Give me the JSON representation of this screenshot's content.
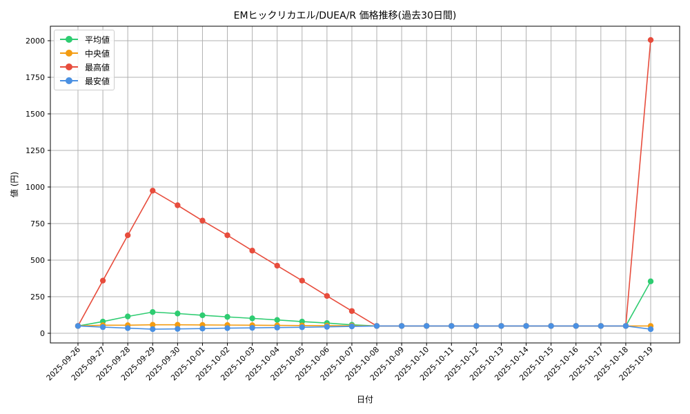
{
  "chart_data": {
    "type": "line",
    "title": "EMヒックリカエル/DUEA/R 価格推移(過去30日間)",
    "xlabel": "日付",
    "ylabel": "値 (円)",
    "ylim": [
      -65,
      2105
    ],
    "yticks": [
      0,
      250,
      500,
      750,
      1000,
      1250,
      1500,
      1750,
      2000
    ],
    "grid": true,
    "legend_position": "upper left",
    "categories": [
      "2025-09-26",
      "2025-09-27",
      "2025-09-28",
      "2025-09-29",
      "2025-09-30",
      "2025-10-01",
      "2025-10-02",
      "2025-10-03",
      "2025-10-04",
      "2025-10-05",
      "2025-10-06",
      "2025-10-07",
      "2025-10-08",
      "2025-10-09",
      "2025-10-10",
      "2025-10-11",
      "2025-10-12",
      "2025-10-13",
      "2025-10-14",
      "2025-10-15",
      "2025-10-16",
      "2025-10-17",
      "2025-10-18",
      "2025-10-19"
    ],
    "series": [
      {
        "name": "平均値",
        "color": "#2ecc71",
        "values": [
          50,
          80,
          115,
          145,
          135,
          123,
          112,
          102,
          91,
          80,
          70,
          58,
          50,
          50,
          50,
          50,
          50,
          50,
          50,
          50,
          50,
          50,
          50,
          355
        ]
      },
      {
        "name": "中央値",
        "color": "#f39c12",
        "values": [
          50,
          55,
          55,
          58,
          58,
          57,
          56,
          55,
          54,
          53,
          52,
          51,
          50,
          50,
          50,
          50,
          50,
          50,
          50,
          50,
          50,
          50,
          50,
          50
        ]
      },
      {
        "name": "最高値",
        "color": "#e74c3c",
        "values": [
          50,
          360,
          670,
          975,
          875,
          770,
          670,
          565,
          462,
          360,
          255,
          152,
          50,
          50,
          50,
          50,
          50,
          50,
          50,
          50,
          50,
          50,
          50,
          2005
        ]
      },
      {
        "name": "最安値",
        "color": "#4a90e2",
        "values": [
          50,
          42,
          35,
          28,
          30,
          32,
          35,
          37,
          39,
          41,
          44,
          47,
          50,
          50,
          50,
          50,
          50,
          50,
          50,
          50,
          50,
          50,
          50,
          28
        ]
      }
    ]
  }
}
